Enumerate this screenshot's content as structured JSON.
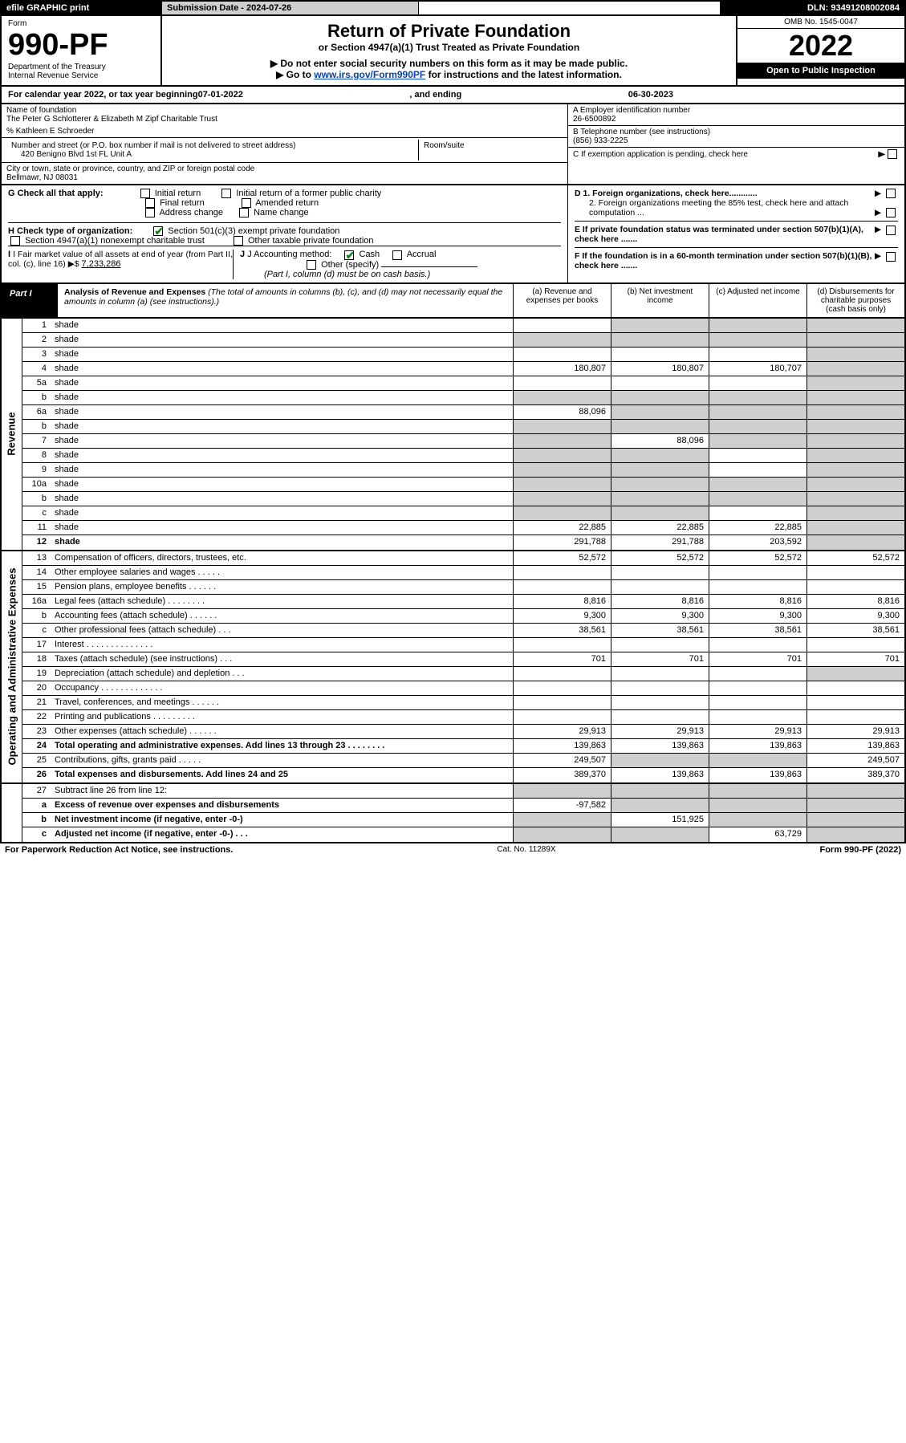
{
  "header": {
    "efile": "efile GRAPHIC print",
    "subdate_label": "Submission Date - 2024-07-26",
    "dln": "DLN: 93491208002084",
    "omb": "OMB No. 1545-0047",
    "form_word": "Form",
    "form_no": "990-PF",
    "dept": "Department of the Treasury",
    "irs": "Internal Revenue Service",
    "title": "Return of Private Foundation",
    "subtitle": "or Section 4947(a)(1) Trust Treated as Private Foundation",
    "warn": "▶ Do not enter social security numbers on this form as it may be made public.",
    "goto_pre": "▶ Go to ",
    "goto_link": "www.irs.gov/Form990PF",
    "goto_post": " for instructions and the latest information.",
    "year": "2022",
    "open": "Open to Public Inspection"
  },
  "yearband": {
    "pre": "For calendar year 2022, or tax year beginning ",
    "begin": "07-01-2022",
    "mid": " , and ending ",
    "end": "06-30-2023"
  },
  "info": {
    "name_label": "Name of foundation",
    "name": "The Peter G Schlotterer & Elizabeth M Zipf Charitable Trust",
    "care": "% Kathleen E Schroeder",
    "addr_label": "Number and street (or P.O. box number if mail is not delivered to street address)",
    "addr": "420 Benigno Blvd 1st FL Unit A",
    "room_label": "Room/suite",
    "city_label": "City or town, state or province, country, and ZIP or foreign postal code",
    "city": "Bellmawr, NJ  08031",
    "a_label": "A Employer identification number",
    "a_val": "26-6500892",
    "b_label": "B Telephone number (see instructions)",
    "b_val": "(856) 933-2225",
    "c_label": "C If exemption application is pending, check here",
    "d1": "D 1. Foreign organizations, check here............",
    "d2": "2. Foreign organizations meeting the 85% test, check here and attach computation ...",
    "e": "E  If private foundation status was terminated under section 507(b)(1)(A), check here .......",
    "f": "F  If the foundation is in a 60-month termination under section 507(b)(1)(B), check here ......."
  },
  "checks": {
    "g": "G Check all that apply:",
    "g_opts": [
      "Initial return",
      "Initial return of a former public charity",
      "Final return",
      "Amended return",
      "Address change",
      "Name change"
    ],
    "h": "H Check type of organization:",
    "h1": "Section 501(c)(3) exempt private foundation",
    "h2": "Section 4947(a)(1) nonexempt charitable trust",
    "h3": "Other taxable private foundation",
    "i": "I Fair market value of all assets at end of year (from Part II, col. (c), line 16) ▶$ ",
    "i_val": "7,233,286",
    "j": "J Accounting method:",
    "j_cash": "Cash",
    "j_accr": "Accrual",
    "j_other": "Other (specify)",
    "j_note": "(Part I, column (d) must be on cash basis.)"
  },
  "part1": {
    "label": "Part I",
    "title": "Analysis of Revenue and Expenses",
    "note": " (The total of amounts in columns (b), (c), and (d) may not necessarily equal the amounts in column (a) (see instructions).)",
    "col_a": "(a)  Revenue and expenses per books",
    "col_b": "(b)  Net investment income",
    "col_c": "(c)  Adjusted net income",
    "col_d": "(d)  Disbursements for charitable purposes (cash basis only)"
  },
  "rows": [
    {
      "n": "1",
      "d": "shade",
      "a": "",
      "b": "shade",
      "c": "shade"
    },
    {
      "n": "2",
      "d": "shade",
      "a": "shade",
      "b": "shade",
      "c": "shade"
    },
    {
      "n": "3",
      "d": "shade",
      "a": "",
      "b": "",
      "c": ""
    },
    {
      "n": "4",
      "d": "shade",
      "a": "180,807",
      "b": "180,807",
      "c": "180,707"
    },
    {
      "n": "5a",
      "d": "shade",
      "a": "",
      "b": "",
      "c": ""
    },
    {
      "n": "b",
      "d": "shade",
      "a": "shade",
      "b": "shade",
      "c": "shade"
    },
    {
      "n": "6a",
      "d": "shade",
      "a": "88,096",
      "b": "shade",
      "c": "shade"
    },
    {
      "n": "b",
      "d": "shade",
      "a": "shade",
      "b": "shade",
      "c": "shade"
    },
    {
      "n": "7",
      "d": "shade",
      "a": "shade",
      "b": "88,096",
      "c": "shade"
    },
    {
      "n": "8",
      "d": "shade",
      "a": "shade",
      "b": "shade",
      "c": ""
    },
    {
      "n": "9",
      "d": "shade",
      "a": "shade",
      "b": "shade",
      "c": ""
    },
    {
      "n": "10a",
      "d": "shade",
      "a": "shade",
      "b": "shade",
      "c": "shade"
    },
    {
      "n": "b",
      "d": "shade",
      "a": "shade",
      "b": "shade",
      "c": "shade"
    },
    {
      "n": "c",
      "d": "shade",
      "a": "shade",
      "b": "shade",
      "c": ""
    },
    {
      "n": "11",
      "d": "shade",
      "a": "22,885",
      "b": "22,885",
      "c": "22,885"
    },
    {
      "n": "12",
      "d": "shade",
      "a": "291,788",
      "b": "291,788",
      "c": "203,592",
      "bold": true
    }
  ],
  "exp": [
    {
      "n": "13",
      "d": "Compensation of officers, directors, trustees, etc.",
      "a": "52,572",
      "b": "52,572",
      "c": "52,572",
      "dd": "52,572"
    },
    {
      "n": "14",
      "d": "Other employee salaries and wages  . . . . .",
      "a": "",
      "b": "",
      "c": "",
      "dd": ""
    },
    {
      "n": "15",
      "d": "Pension plans, employee benefits . . . . . .",
      "a": "",
      "b": "",
      "c": "",
      "dd": ""
    },
    {
      "n": "16a",
      "d": "Legal fees (attach schedule) . . . . . . . .",
      "a": "8,816",
      "b": "8,816",
      "c": "8,816",
      "dd": "8,816"
    },
    {
      "n": "b",
      "d": "Accounting fees (attach schedule) . . . . . .",
      "a": "9,300",
      "b": "9,300",
      "c": "9,300",
      "dd": "9,300"
    },
    {
      "n": "c",
      "d": "Other professional fees (attach schedule)  . . .",
      "a": "38,561",
      "b": "38,561",
      "c": "38,561",
      "dd": "38,561"
    },
    {
      "n": "17",
      "d": "Interest . . . . . . . . . . . . . .",
      "a": "",
      "b": "",
      "c": "",
      "dd": ""
    },
    {
      "n": "18",
      "d": "Taxes (attach schedule) (see instructions)  . . .",
      "a": "701",
      "b": "701",
      "c": "701",
      "dd": "701"
    },
    {
      "n": "19",
      "d": "Depreciation (attach schedule) and depletion  . . .",
      "a": "",
      "b": "",
      "c": "",
      "dd": "shade"
    },
    {
      "n": "20",
      "d": "Occupancy . . . . . . . . . . . . .",
      "a": "",
      "b": "",
      "c": "",
      "dd": ""
    },
    {
      "n": "21",
      "d": "Travel, conferences, and meetings . . . . . .",
      "a": "",
      "b": "",
      "c": "",
      "dd": ""
    },
    {
      "n": "22",
      "d": "Printing and publications . . . . . . . . .",
      "a": "",
      "b": "",
      "c": "",
      "dd": ""
    },
    {
      "n": "23",
      "d": "Other expenses (attach schedule) . . . . . .",
      "a": "29,913",
      "b": "29,913",
      "c": "29,913",
      "dd": "29,913"
    },
    {
      "n": "24",
      "d": "Total operating and administrative expenses. Add lines 13 through 23  . . . . . . . .",
      "a": "139,863",
      "b": "139,863",
      "c": "139,863",
      "dd": "139,863",
      "bold": true
    },
    {
      "n": "25",
      "d": "Contributions, gifts, grants paid  . . . . .",
      "a": "249,507",
      "b": "shade",
      "c": "shade",
      "dd": "249,507"
    },
    {
      "n": "26",
      "d": "Total expenses and disbursements. Add lines 24 and 25",
      "a": "389,370",
      "b": "139,863",
      "c": "139,863",
      "dd": "389,370",
      "bold": true
    }
  ],
  "bottom": [
    {
      "n": "27",
      "d": "Subtract line 26 from line 12:",
      "a": "shade",
      "b": "shade",
      "c": "shade",
      "dd": "shade"
    },
    {
      "n": "a",
      "d": "Excess of revenue over expenses and disbursements",
      "a": "-97,582",
      "b": "shade",
      "c": "shade",
      "dd": "shade",
      "bold": true
    },
    {
      "n": "b",
      "d": "Net investment income (if negative, enter -0-)",
      "a": "shade",
      "b": "151,925",
      "c": "shade",
      "dd": "shade",
      "bold": true
    },
    {
      "n": "c",
      "d": "Adjusted net income (if negative, enter -0-)  . . .",
      "a": "shade",
      "b": "shade",
      "c": "63,729",
      "dd": "shade",
      "bold": true
    }
  ],
  "tail": {
    "left": "For Paperwork Reduction Act Notice, see instructions.",
    "mid": "Cat. No. 11289X",
    "right": "Form 990-PF (2022)"
  },
  "colors": {
    "shade": "#cfcfcf",
    "link": "#0645ad",
    "check": "#1a7f1a"
  }
}
